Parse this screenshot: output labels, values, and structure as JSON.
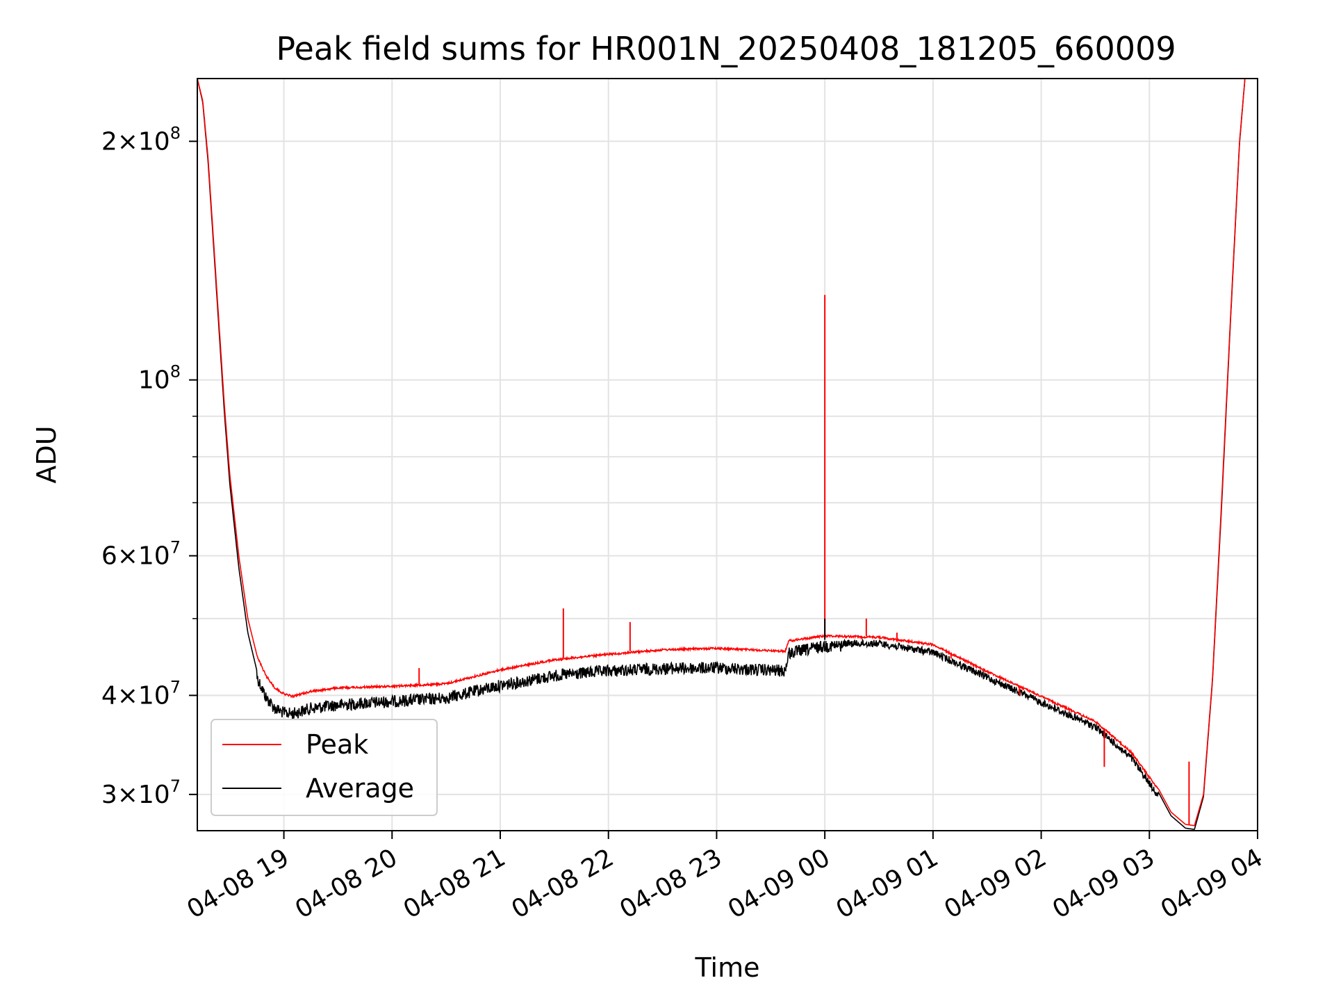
{
  "chart_data": {
    "type": "line",
    "title": "Peak field sums for HR001N_20250408_181205_660009",
    "xlabel": "Time",
    "ylabel": "ADU",
    "yscale": "log",
    "ylim": [
      27000000,
      240000000
    ],
    "xlim": [
      "2025-04-08 18:12",
      "2025-04-09 04:00"
    ],
    "grid": true,
    "legend_position": "lower-left",
    "x_ticks": [
      "04-08 19",
      "04-08 20",
      "04-08 21",
      "04-08 22",
      "04-08 23",
      "04-09 00",
      "04-09 01",
      "04-09 02",
      "04-09 03",
      "04-09 04"
    ],
    "y_ticks": [
      {
        "value": 30000000,
        "mantissa": "3",
        "exponent": "7"
      },
      {
        "value": 40000000,
        "mantissa": "4",
        "exponent": "7"
      },
      {
        "value": 60000000,
        "mantissa": "6",
        "exponent": "7"
      },
      {
        "value": 100000000,
        "mantissa": "",
        "exponent": "8"
      },
      {
        "value": 200000000,
        "mantissa": "2",
        "exponent": "8"
      }
    ],
    "x": [
      "2025-04-08 18:12",
      "2025-04-08 18:15",
      "2025-04-08 18:18",
      "2025-04-08 18:21",
      "2025-04-08 18:24",
      "2025-04-08 18:27",
      "2025-04-08 18:30",
      "2025-04-08 18:35",
      "2025-04-08 18:40",
      "2025-04-08 18:45",
      "2025-04-08 18:50",
      "2025-04-08 18:55",
      "2025-04-08 19:00",
      "2025-04-08 19:05",
      "2025-04-08 19:15",
      "2025-04-08 19:30",
      "2025-04-08 20:00",
      "2025-04-08 20:30",
      "2025-04-08 21:00",
      "2025-04-08 21:30",
      "2025-04-08 22:00",
      "2025-04-08 22:30",
      "2025-04-08 23:00",
      "2025-04-08 23:38",
      "2025-04-08 23:40",
      "2025-04-09 00:00",
      "2025-04-09 00:30",
      "2025-04-09 01:00",
      "2025-04-09 01:30",
      "2025-04-09 02:00",
      "2025-04-09 02:30",
      "2025-04-09 02:50",
      "2025-04-09 03:05",
      "2025-04-09 03:12",
      "2025-04-09 03:20",
      "2025-04-09 03:25",
      "2025-04-09 03:30",
      "2025-04-09 03:35",
      "2025-04-09 03:40",
      "2025-04-09 03:45",
      "2025-04-09 03:50",
      "2025-04-09 03:53"
    ],
    "series": [
      {
        "name": "Peak",
        "color": "#ff0000",
        "values": [
          240000000,
          225000000,
          190000000,
          150000000,
          118000000,
          93000000,
          76000000,
          60000000,
          50000000,
          45000000,
          42500000,
          41000000,
          40300000,
          40000000,
          40600000,
          41000000,
          41200000,
          41500000,
          43200000,
          44500000,
          45200000,
          45800000,
          46000000,
          45600000,
          47000000,
          47700000,
          47500000,
          46500000,
          43000000,
          40000000,
          37200000,
          34000000,
          30500000,
          28500000,
          27500000,
          27400000,
          30000000,
          42000000,
          70000000,
          120000000,
          200000000,
          240000000
        ],
        "spikes": [
          {
            "x": "2025-04-08 20:15",
            "value": 43300000
          },
          {
            "x": "2025-04-08 21:35",
            "value": 51500000
          },
          {
            "x": "2025-04-08 22:12",
            "value": 49500000
          },
          {
            "x": "2025-04-09 00:00",
            "value": 128000000
          },
          {
            "x": "2025-04-09 00:23",
            "value": 50000000
          },
          {
            "x": "2025-04-09 00:40",
            "value": 48000000
          },
          {
            "x": "2025-04-09 01:10",
            "value": 44500000
          },
          {
            "x": "2025-04-09 01:48",
            "value": 40000000
          },
          {
            "x": "2025-04-09 02:35",
            "value": 32500000
          },
          {
            "x": "2025-04-09 03:22",
            "value": 33000000
          }
        ]
      },
      {
        "name": "Average",
        "color": "#000000",
        "values": [
          240000000,
          224000000,
          188000000,
          148000000,
          116000000,
          91000000,
          74000000,
          58000000,
          48000000,
          43000000,
          40500000,
          39200000,
          38700000,
          38600000,
          39200000,
          39600000,
          40000000,
          40400000,
          41900000,
          43100000,
          43700000,
          44000000,
          44100000,
          43700000,
          46000000,
          47000000,
          47000000,
          45800000,
          42600000,
          39600000,
          36900000,
          33700000,
          30200000,
          28200000,
          27200000,
          27100000,
          29800000,
          41800000,
          69000000,
          119000000,
          199000000,
          240000000
        ],
        "noise_amplitude": 0.035
      }
    ]
  }
}
